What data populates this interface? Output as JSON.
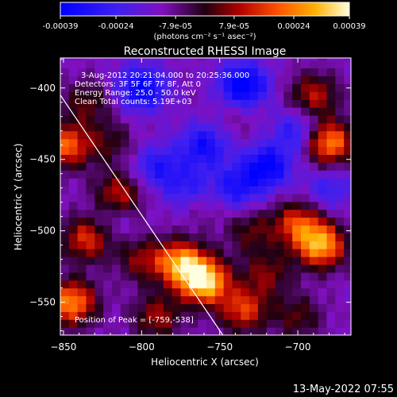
{
  "colorbar": {
    "tick_labels": [
      "-0.00039",
      "-0.00024",
      "-7.9e-05",
      "7.9e-05",
      "0.00024",
      "0.00039"
    ],
    "tick_values": [
      -0.00039,
      -0.00024,
      -7.9e-05,
      7.9e-05,
      0.00024,
      0.00039
    ],
    "range": [
      -0.00039,
      0.00039
    ],
    "unit_label": "(photons cm⁻² s⁻¹ asec⁻²)"
  },
  "chart_data": {
    "type": "heatmap",
    "title": "Reconstructed RHESSI Image",
    "xlabel": "Heliocentric X (arcsec)",
    "ylabel": "Heliocentric Y (arcsec)",
    "xlim": [
      -852,
      -666
    ],
    "ylim": [
      -573,
      -379
    ],
    "x_ticks": [
      -850,
      -800,
      -750,
      -700
    ],
    "y_ticks": [
      -400,
      -450,
      -500,
      -550
    ],
    "x_tick_labels": [
      "−850",
      "−800",
      "−750",
      "−700"
    ],
    "y_tick_labels": [
      "−400",
      "−450",
      "−500",
      "−550"
    ],
    "grid": false,
    "limb_line": [
      [
        -852,
        -405
      ],
      [
        -748,
        -573
      ]
    ],
    "annotations": [
      "3-Aug-2012 20:21:04.000 to 20:25:36.000",
      "Detectors: 3F 5F 6F 7F 8F, Att 0",
      "Energy Range: 25.0 - 50.0 keV",
      "Clean    Total counts: 5.19E+03"
    ],
    "peak_label": "Position of Peak = [-759,-538]",
    "peak": [
      -759,
      -538
    ],
    "hotspots": [
      {
        "x": -760,
        "y": -535,
        "value": 0.00039
      },
      {
        "x": -775,
        "y": -522,
        "value": 0.0003
      },
      {
        "x": -685,
        "y": -510,
        "value": 0.00032
      },
      {
        "x": -700,
        "y": -495,
        "value": 0.00022
      },
      {
        "x": -845,
        "y": -550,
        "value": 0.0003
      },
      {
        "x": -835,
        "y": -505,
        "value": 0.00022
      },
      {
        "x": -815,
        "y": -475,
        "value": 0.0002
      },
      {
        "x": -848,
        "y": -440,
        "value": 0.00025
      },
      {
        "x": -680,
        "y": -438,
        "value": 0.0003
      },
      {
        "x": -690,
        "y": -405,
        "value": 0.00018
      },
      {
        "x": -735,
        "y": -555,
        "value": 0.00022
      },
      {
        "x": -835,
        "y": -410,
        "value": 0.00012
      },
      {
        "x": -820,
        "y": -438,
        "value": 0.0001
      },
      {
        "x": -730,
        "y": -500,
        "value": 0.00012
      },
      {
        "x": -720,
        "y": -530,
        "value": 0.00014
      },
      {
        "x": -700,
        "y": -560,
        "value": 0.00012
      },
      {
        "x": -790,
        "y": -560,
        "value": 0.00016
      },
      {
        "x": -800,
        "y": -520,
        "value": 0.00014
      },
      {
        "x": -760,
        "y": -480,
        "value": 6e-05
      },
      {
        "x": -740,
        "y": -420,
        "value": 4e-05
      },
      {
        "x": -800,
        "y": -400,
        "value": -0.0003
      },
      {
        "x": -760,
        "y": -440,
        "value": -0.00025
      },
      {
        "x": -735,
        "y": -398,
        "value": -0.00035
      },
      {
        "x": -720,
        "y": -455,
        "value": -0.0003
      },
      {
        "x": -700,
        "y": -430,
        "value": -0.0002
      },
      {
        "x": -790,
        "y": -455,
        "value": -0.0002
      },
      {
        "x": -770,
        "y": -470,
        "value": -0.00018
      },
      {
        "x": -740,
        "y": -470,
        "value": -0.00022
      },
      {
        "x": -680,
        "y": -470,
        "value": -0.00015
      },
      {
        "x": -820,
        "y": -490,
        "value": -0.0001
      }
    ]
  },
  "footer": {
    "timestamp": "13-May-2022 07:55"
  }
}
